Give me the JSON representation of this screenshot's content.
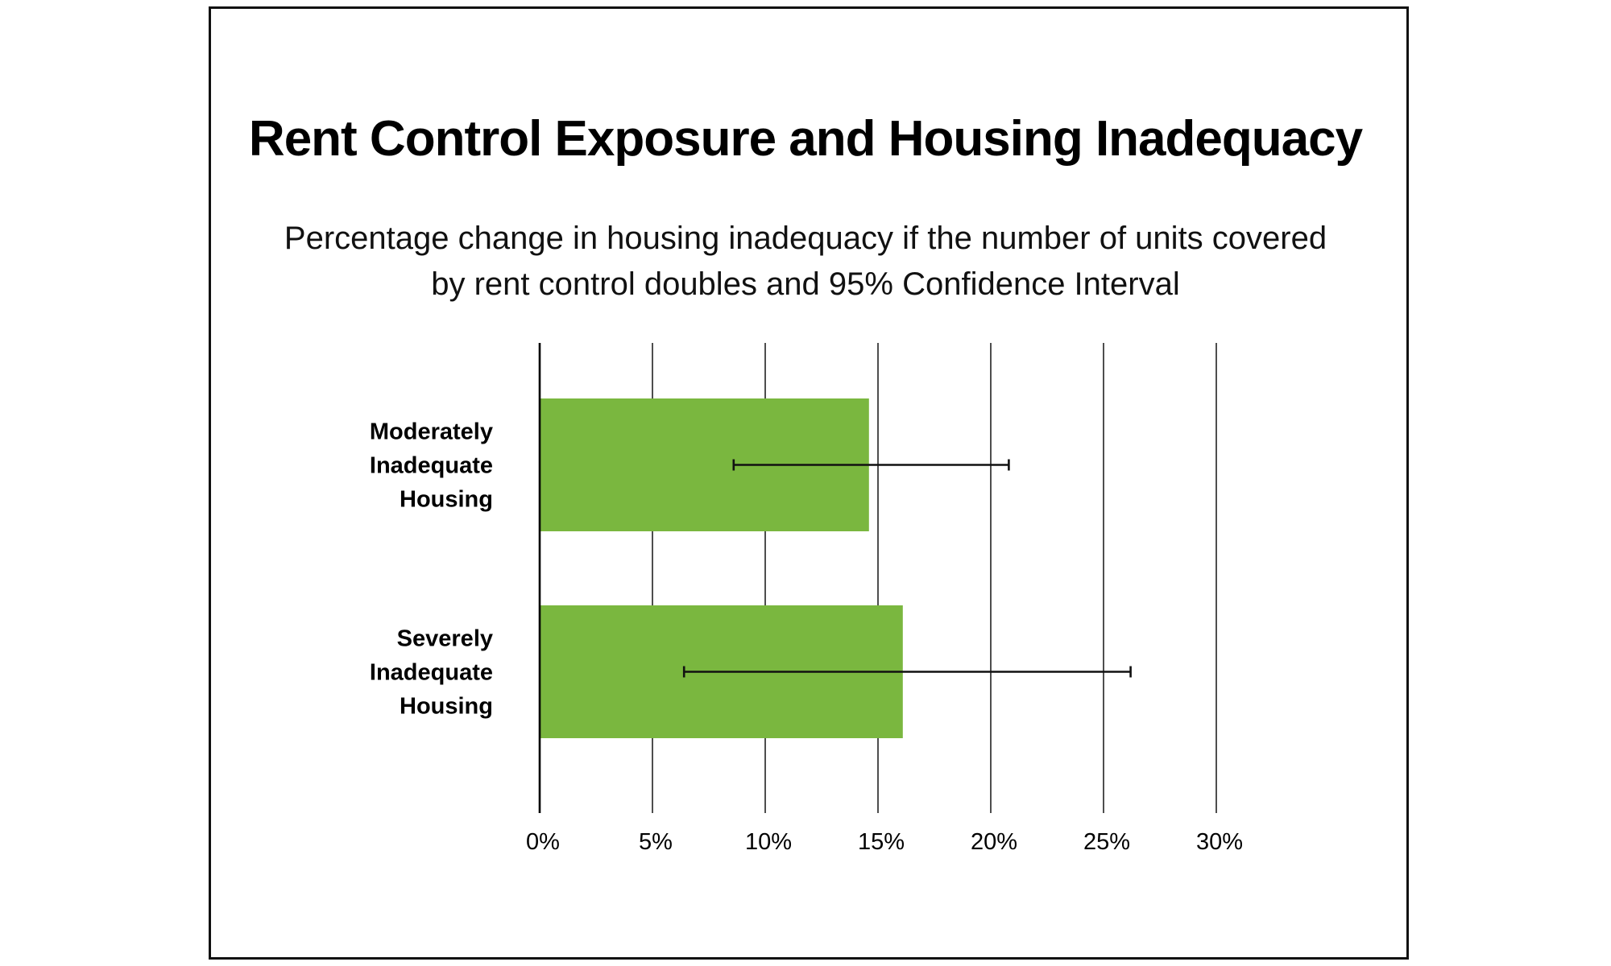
{
  "chart_data": {
    "type": "bar",
    "orientation": "horizontal",
    "title": "Rent Control Exposure and Housing Inadequacy",
    "subtitle_lines": [
      "Percentage change in housing inadequacy if the number of units covered",
      "by rent control doubles and 95% Confidence Interval"
    ],
    "categories": [
      [
        "Moderately",
        "Inadequate",
        "Housing"
      ],
      [
        "Severely",
        "Inadequate",
        "Housing"
      ]
    ],
    "values": [
      14.6,
      16.1
    ],
    "error_bars": [
      {
        "low": 8.6,
        "high": 20.8
      },
      {
        "low": 6.4,
        "high": 26.2
      }
    ],
    "xlim": [
      0,
      30
    ],
    "ticks": [
      0,
      5,
      10,
      15,
      20,
      25,
      30
    ],
    "tick_labels": [
      "0%",
      "5%",
      "10%",
      "15%",
      "20%",
      "25%",
      "30%"
    ],
    "grid": "vertical",
    "bar_color": "#7ab73f",
    "error_color": "#111111",
    "grid_color": "#222222"
  }
}
